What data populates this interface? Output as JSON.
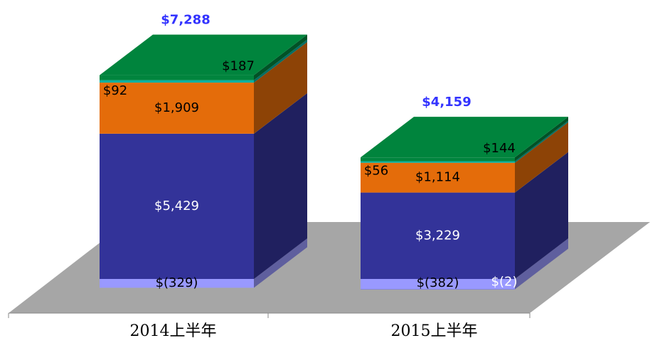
{
  "chart_data": {
    "type": "bar3d_stacked",
    "categories": [
      "2014上半年",
      "2015上半年"
    ],
    "series": [
      {
        "color": "#9999ff",
        "values": [
          -329,
          -382
        ],
        "value_labels": [
          "$(329)",
          "$(382)"
        ]
      },
      {
        "color": "#6666cc",
        "values": [
          null,
          -2
        ],
        "value_labels": [
          null,
          "$(2)"
        ]
      },
      {
        "color": "#333399",
        "values": [
          5429,
          3229
        ],
        "value_labels": [
          "$5,429",
          "$3,229"
        ]
      },
      {
        "color": "#e46c0a",
        "values": [
          1909,
          1114
        ],
        "value_labels": [
          "$1,909",
          "$1,114"
        ]
      },
      {
        "color": "#00b0a0",
        "values": [
          92,
          56
        ],
        "value_labels": [
          "$92",
          "$56"
        ]
      },
      {
        "color": "#00843d",
        "values": [
          187,
          144
        ],
        "value_labels": [
          "$187",
          "$144"
        ]
      }
    ],
    "totals": [
      7288,
      4159
    ],
    "total_labels": [
      "$7,288",
      "$4,159"
    ],
    "total_color": "#3333ff"
  }
}
